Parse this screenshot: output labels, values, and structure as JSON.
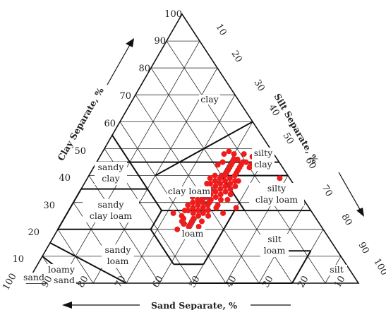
{
  "chart_data": {
    "type": "scatter",
    "subtype": "USDA soil texture triangle (ternary)",
    "axes": {
      "clay": {
        "label": "Clay Separate, %",
        "ticks": [
          "10",
          "20",
          "30",
          "40",
          "50",
          "60",
          "70",
          "80",
          "90",
          "100"
        ]
      },
      "silt": {
        "label": "Silt Separate, %",
        "ticks": [
          "10",
          "20",
          "30",
          "40",
          "50",
          "60",
          "70",
          "80",
          "90",
          "100"
        ]
      },
      "sand": {
        "label": "Sand Separate, %",
        "ticks": [
          "100",
          "90",
          "80",
          "70",
          "60",
          "50",
          "40",
          "30",
          "20",
          "10"
        ]
      }
    },
    "grid": true,
    "texture_classes": [
      {
        "id": "clay",
        "lines": [
          "clay"
        ]
      },
      {
        "id": "silty-clay",
        "lines": [
          "silty",
          "clay"
        ]
      },
      {
        "id": "sandy-clay",
        "lines": [
          "sandy",
          "clay"
        ]
      },
      {
        "id": "clay-loam",
        "lines": [
          "clay loam"
        ]
      },
      {
        "id": "silty-clay-loam",
        "lines": [
          "silty",
          "clay loam"
        ]
      },
      {
        "id": "sandy-clay-loam",
        "lines": [
          "sandy",
          "clay loam"
        ]
      },
      {
        "id": "loam",
        "lines": [
          "loam"
        ]
      },
      {
        "id": "silt-loam",
        "lines": [
          "silt",
          "loam"
        ]
      },
      {
        "id": "sandy-loam",
        "lines": [
          "sandy",
          "loam"
        ]
      },
      {
        "id": "loamy-sand",
        "lines": [
          "loamy",
          "sand"
        ]
      },
      {
        "id": "sand",
        "lines": [
          "sand"
        ]
      },
      {
        "id": "silt",
        "lines": [
          "silt"
        ]
      }
    ],
    "point_color": "#ee1c1c",
    "points": [
      {
        "sand": 41,
        "clay": 22
      },
      {
        "sand": 40,
        "clay": 21
      },
      {
        "sand": 41,
        "clay": 23
      },
      {
        "sand": 39,
        "clay": 22
      },
      {
        "sand": 40,
        "clay": 24
      },
      {
        "sand": 38,
        "clay": 23
      },
      {
        "sand": 40,
        "clay": 25
      },
      {
        "sand": 37,
        "clay": 24
      },
      {
        "sand": 36,
        "clay": 26
      },
      {
        "sand": 37,
        "clay": 27
      },
      {
        "sand": 35,
        "clay": 25
      },
      {
        "sand": 34,
        "clay": 27
      },
      {
        "sand": 35,
        "clay": 28
      },
      {
        "sand": 33,
        "clay": 26
      },
      {
        "sand": 33,
        "clay": 29
      },
      {
        "sand": 32,
        "clay": 28
      },
      {
        "sand": 31,
        "clay": 30
      },
      {
        "sand": 30,
        "clay": 29
      },
      {
        "sand": 31,
        "clay": 31
      },
      {
        "sand": 29,
        "clay": 30
      },
      {
        "sand": 29,
        "clay": 32
      },
      {
        "sand": 28,
        "clay": 31
      },
      {
        "sand": 27,
        "clay": 33
      },
      {
        "sand": 28,
        "clay": 34
      },
      {
        "sand": 26,
        "clay": 32
      },
      {
        "sand": 26,
        "clay": 35
      },
      {
        "sand": 25,
        "clay": 34
      },
      {
        "sand": 24,
        "clay": 36
      },
      {
        "sand": 25,
        "clay": 37
      },
      {
        "sand": 23,
        "clay": 35
      },
      {
        "sand": 22,
        "clay": 37
      },
      {
        "sand": 23,
        "clay": 38
      },
      {
        "sand": 21,
        "clay": 36
      },
      {
        "sand": 21,
        "clay": 39
      },
      {
        "sand": 20,
        "clay": 38
      },
      {
        "sand": 19,
        "clay": 40
      },
      {
        "sand": 20,
        "clay": 40
      },
      {
        "sand": 18,
        "clay": 39
      },
      {
        "sand": 18,
        "clay": 41
      },
      {
        "sand": 17,
        "clay": 42
      },
      {
        "sand": 16,
        "clay": 40
      },
      {
        "sand": 16,
        "clay": 43
      },
      {
        "sand": 15,
        "clay": 41
      },
      {
        "sand": 15,
        "clay": 44
      },
      {
        "sand": 14,
        "clay": 42
      },
      {
        "sand": 14,
        "clay": 45
      },
      {
        "sand": 13,
        "clay": 43
      },
      {
        "sand": 12,
        "clay": 44
      },
      {
        "sand": 12,
        "clay": 46
      },
      {
        "sand": 11,
        "clay": 45
      },
      {
        "sand": 30,
        "clay": 33
      },
      {
        "sand": 32,
        "clay": 31
      },
      {
        "sand": 28,
        "clay": 28
      },
      {
        "sand": 34,
        "clay": 30
      },
      {
        "sand": 27,
        "clay": 29
      },
      {
        "sand": 24,
        "clay": 33
      },
      {
        "sand": 22,
        "clay": 34
      },
      {
        "sand": 20,
        "clay": 35
      },
      {
        "sand": 19,
        "clay": 37
      },
      {
        "sand": 17,
        "clay": 38
      },
      {
        "sand": 26,
        "clay": 37
      },
      {
        "sand": 29,
        "clay": 35
      },
      {
        "sand": 24,
        "clay": 39
      },
      {
        "sand": 22,
        "clay": 40
      },
      {
        "sand": 36,
        "clay": 29
      },
      {
        "sand": 38,
        "clay": 27
      },
      {
        "sand": 33,
        "clay": 32
      },
      {
        "sand": 31,
        "clay": 27
      },
      {
        "sand": 25,
        "clay": 31
      },
      {
        "sand": 21,
        "clay": 33
      },
      {
        "sand": 44,
        "clay": 20
      },
      {
        "sand": 43,
        "clay": 18
      },
      {
        "sand": 39,
        "clay": 19
      },
      {
        "sand": 42,
        "clay": 26
      },
      {
        "sand": 18,
        "clay": 36
      },
      {
        "sand": 16,
        "clay": 38
      },
      {
        "sand": 13,
        "clay": 46
      },
      {
        "sand": 10,
        "clay": 45
      },
      {
        "sand": 10,
        "clay": 43
      },
      {
        "sand": 9,
        "clay": 44
      },
      {
        "sand": 15,
        "clay": 48
      },
      {
        "sand": 13,
        "clay": 49
      },
      {
        "sand": 12,
        "clay": 48
      },
      {
        "sand": 9,
        "clay": 48
      },
      {
        "sand": 7,
        "clay": 47
      },
      {
        "sand": 19,
        "clay": 44
      },
      {
        "sand": 17,
        "clay": 45
      },
      {
        "sand": 3,
        "clay": 39
      },
      {
        "sand": 4,
        "clay": 34
      },
      {
        "sand": 27,
        "clay": 26
      },
      {
        "sand": 23,
        "clay": 31
      },
      {
        "sand": 32,
        "clay": 25
      },
      {
        "sand": 35,
        "clay": 23
      },
      {
        "sand": 37,
        "clay": 21
      },
      {
        "sand": 22,
        "clay": 28
      }
    ]
  }
}
